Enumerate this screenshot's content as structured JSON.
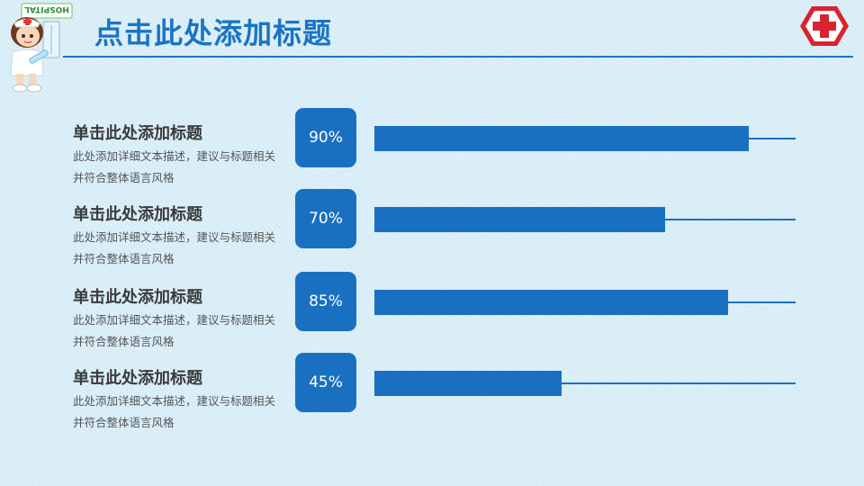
{
  "header": {
    "title": "点击此处添加标题"
  },
  "mascot": {
    "sign_text": "HOSPITAL"
  },
  "rows": [
    {
      "title": "单击此处添加标题",
      "desc": "此处添加详细文本描述，建议与标题相关并符合整体语言风格",
      "percent_label": "90%",
      "value": 90
    },
    {
      "title": "单击此处添加标题",
      "desc": "此处添加详细文本描述，建议与标题相关并符合整体语言风格",
      "percent_label": "70%",
      "value": 70
    },
    {
      "title": "单击此处添加标题",
      "desc": "此处添加详细文本描述，建议与标题相关并符合整体语言风格",
      "percent_label": "85%",
      "value": 85
    },
    {
      "title": "单击此处添加标题",
      "desc": "此处添加详细文本描述，建议与标题相关并符合整体语言风格",
      "percent_label": "45%",
      "value": 45
    }
  ],
  "colors": {
    "accent": "#1a70c0",
    "title": "#1a74c4",
    "cross_red": "#d9232e"
  }
}
